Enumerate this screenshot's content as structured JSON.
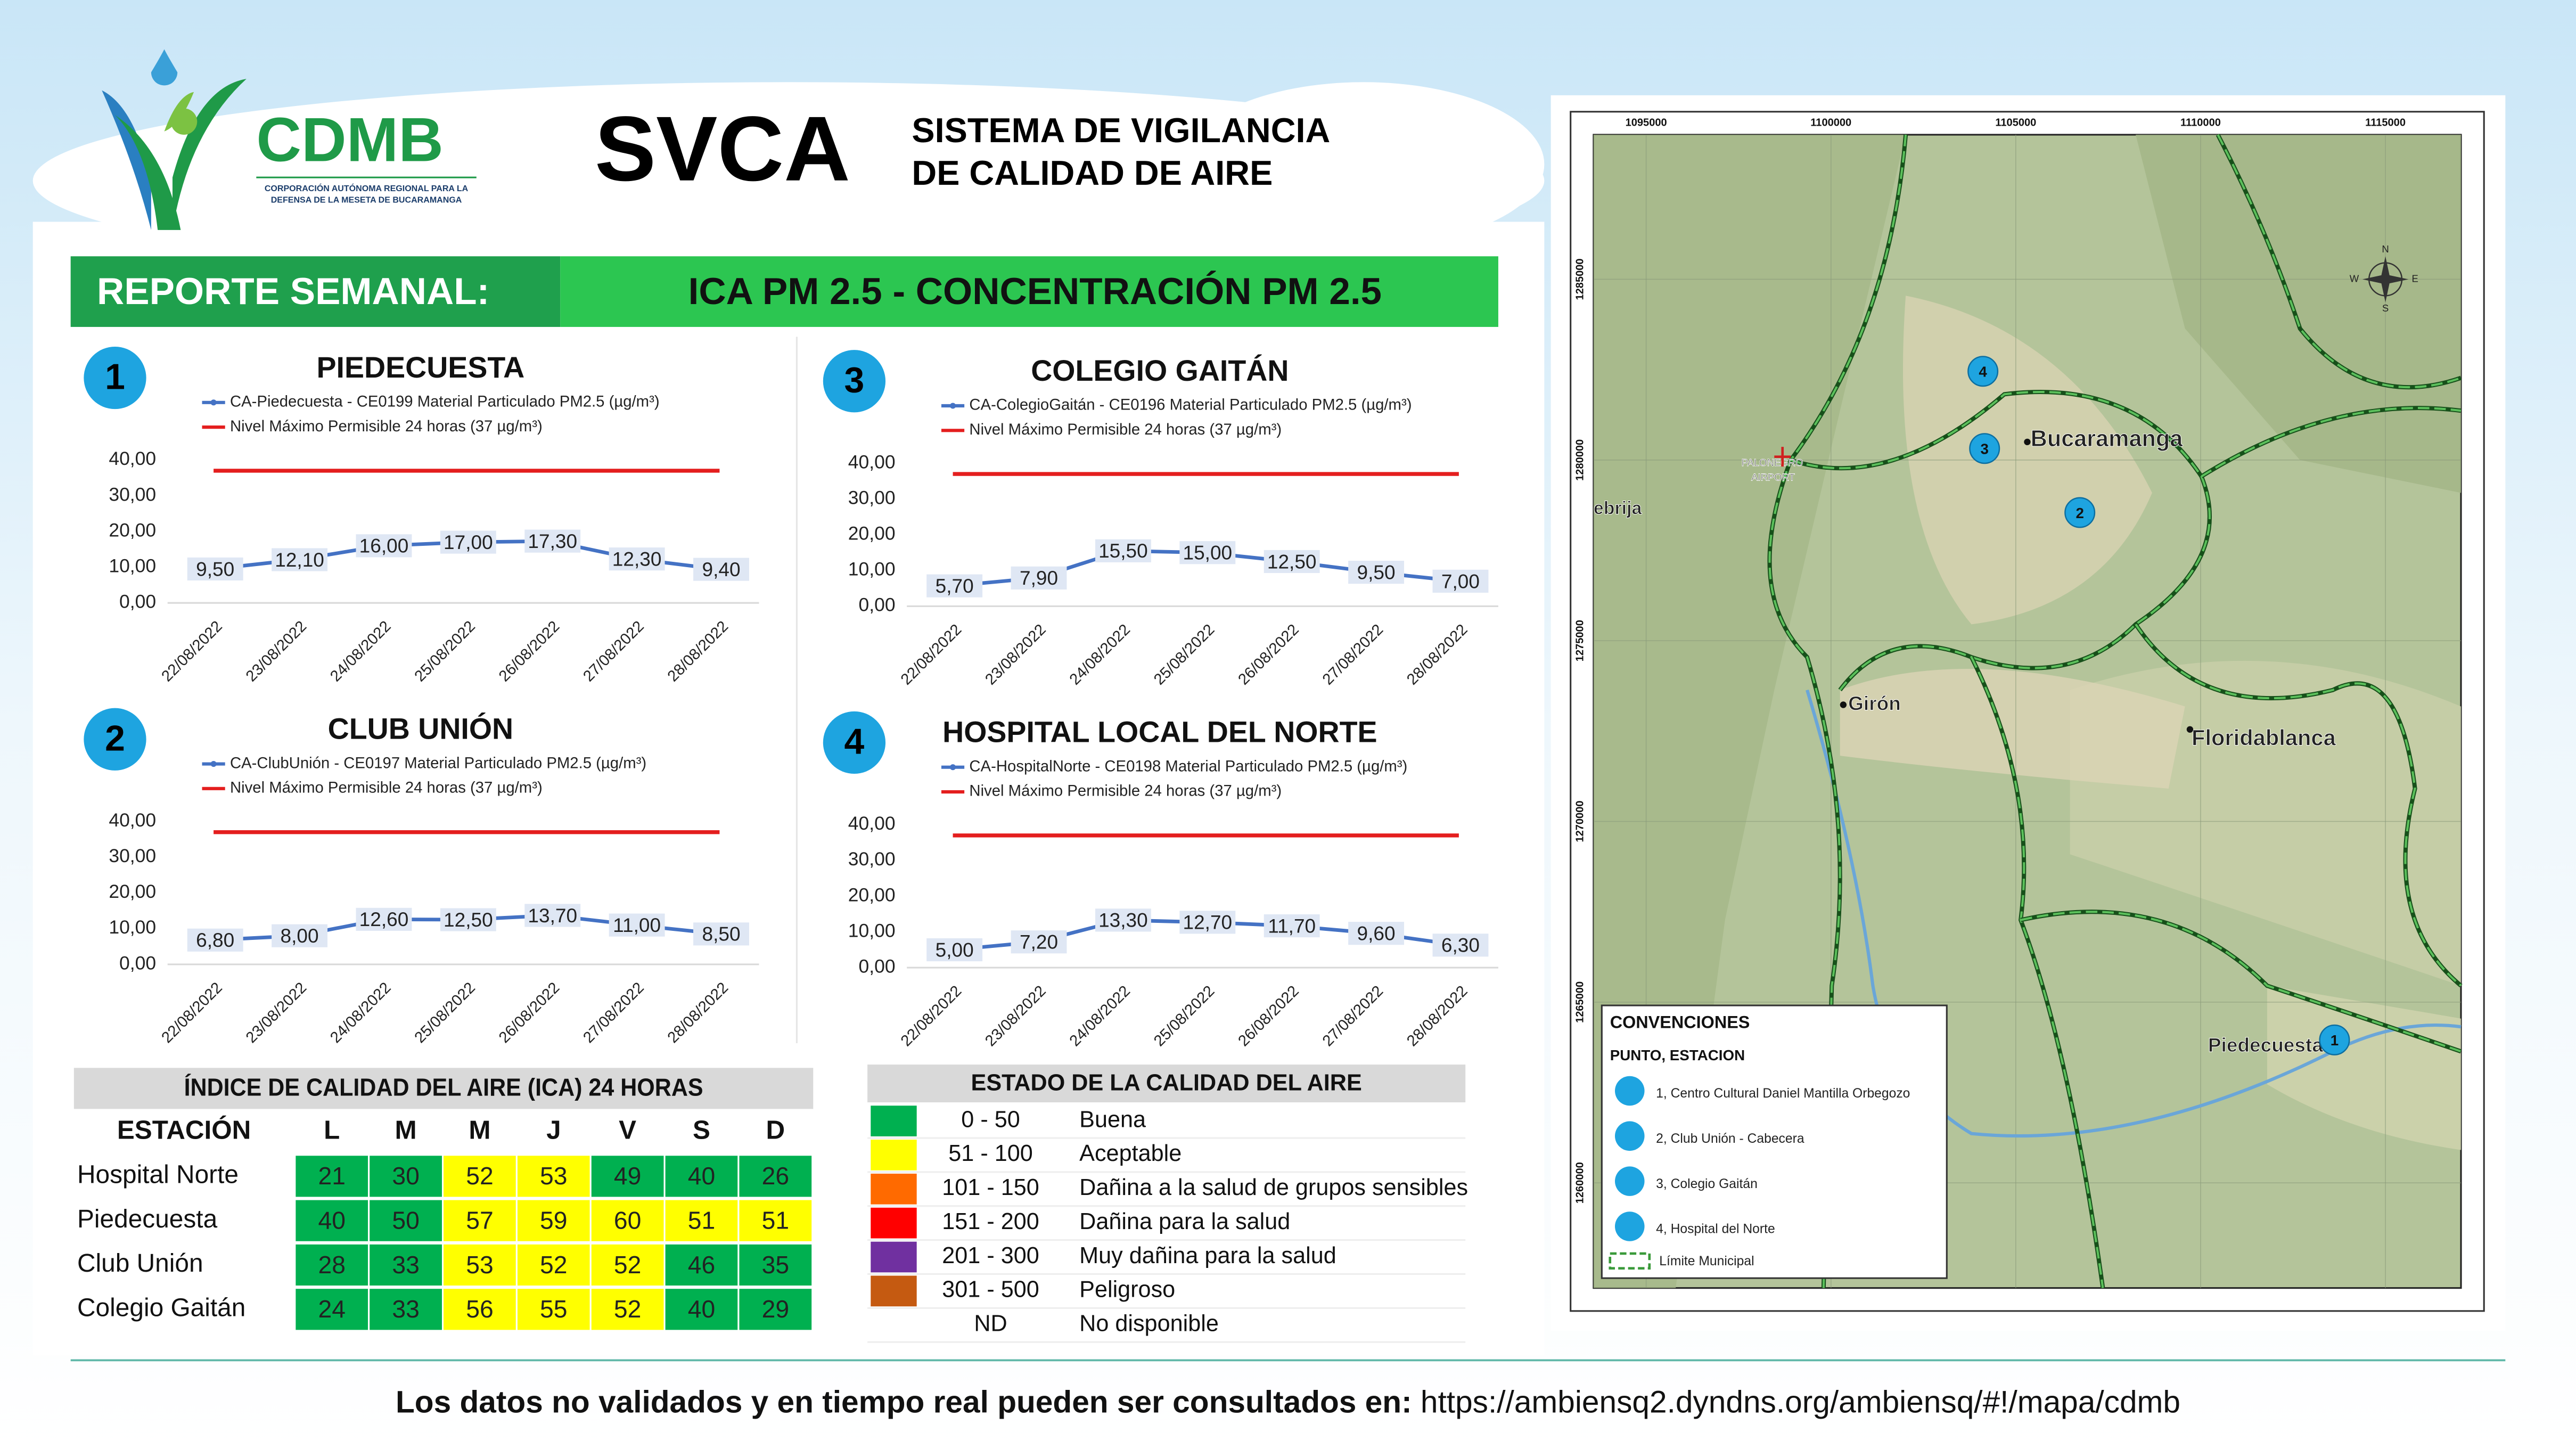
{
  "header": {
    "org": "CDMB",
    "org_subtitle": [
      "CORPORACIÓN AUTÓNOMA REGIONAL PARA LA",
      "DEFENSA DE LA MESETA DE BUCARAMANGA"
    ],
    "title": "SVCA",
    "subtitle": [
      "SISTEMA DE VIGILANCIA",
      "DE CALIDAD DE AIRE"
    ]
  },
  "banner": {
    "label": "REPORTE SEMANAL:",
    "title": "ICA PM 2.5 - CONCENTRACIÓN PM 2.5"
  },
  "chart_data": [
    {
      "type": "line",
      "number": "1",
      "title": "PIEDECUESTA",
      "categories": [
        "22/08/2022",
        "23/08/2022",
        "24/08/2022",
        "25/08/2022",
        "26/08/2022",
        "27/08/2022",
        "28/08/2022"
      ],
      "series": [
        {
          "name": "CA-Piedecuesta - CE0199 Material Particulado PM2.5 (µg/m³)",
          "color": "#4472c4",
          "values": [
            9.5,
            12.1,
            16,
            17,
            17.3,
            12.3,
            9.4
          ],
          "value_labels": [
            "9,50",
            "12,10",
            "16,00",
            "17,00",
            "17,30",
            "12,30",
            "9,40"
          ]
        },
        {
          "name": "Nivel Máximo Permisible 24 horas (37 µg/m³)",
          "color": "#e41e1e",
          "values": [
            37,
            37,
            37,
            37,
            37,
            37,
            37
          ]
        }
      ],
      "ylim": [
        0,
        40
      ],
      "yticks": [
        {
          "value": 0,
          "label": "0,00"
        },
        {
          "value": 10,
          "label": "10,00"
        },
        {
          "value": 20,
          "label": "20,00"
        },
        {
          "value": 30,
          "label": "30,00"
        },
        {
          "value": 40,
          "label": "40,00"
        }
      ]
    },
    {
      "type": "line",
      "number": "2",
      "title": "CLUB UNIÓN",
      "categories": [
        "22/08/2022",
        "23/08/2022",
        "24/08/2022",
        "25/08/2022",
        "26/08/2022",
        "27/08/2022",
        "28/08/2022"
      ],
      "series": [
        {
          "name": "CA-ClubUnión - CE0197 Material Particulado PM2.5 (µg/m³)",
          "color": "#4472c4",
          "values": [
            6.8,
            8,
            12.6,
            12.5,
            13.7,
            11,
            8.5
          ],
          "value_labels": [
            "6,80",
            "8,00",
            "12,60",
            "12,50",
            "13,70",
            "11,00",
            "8,50"
          ]
        },
        {
          "name": "Nivel Máximo Permisible 24 horas (37 µg/m³)",
          "color": "#e41e1e",
          "values": [
            37,
            37,
            37,
            37,
            37,
            37,
            37
          ]
        }
      ],
      "ylim": [
        0,
        40
      ],
      "yticks": [
        {
          "value": 0,
          "label": "0,00"
        },
        {
          "value": 10,
          "label": "10,00"
        },
        {
          "value": 20,
          "label": "20,00"
        },
        {
          "value": 30,
          "label": "30,00"
        },
        {
          "value": 40,
          "label": "40,00"
        }
      ]
    },
    {
      "type": "line",
      "number": "3",
      "title": "COLEGIO GAITÁN",
      "categories": [
        "22/08/2022",
        "23/08/2022",
        "24/08/2022",
        "25/08/2022",
        "26/08/2022",
        "27/08/2022",
        "28/08/2022"
      ],
      "series": [
        {
          "name": "CA-ColegioGaitán - CE0196 Material Particulado PM2.5 (µg/m³)",
          "color": "#4472c4",
          "values": [
            5.7,
            7.9,
            15.5,
            15,
            12.5,
            9.5,
            7
          ],
          "value_labels": [
            "5,70",
            "7,90",
            "15,50",
            "15,00",
            "12,50",
            "9,50",
            "7,00"
          ]
        },
        {
          "name": "Nivel Máximo Permisible 24 horas (37 µg/m³)",
          "color": "#e41e1e",
          "values": [
            37,
            37,
            37,
            37,
            37,
            37,
            37
          ]
        }
      ],
      "ylim": [
        0,
        40
      ],
      "yticks": [
        {
          "value": 0,
          "label": "0,00"
        },
        {
          "value": 10,
          "label": "10,00"
        },
        {
          "value": 20,
          "label": "20,00"
        },
        {
          "value": 30,
          "label": "30,00"
        },
        {
          "value": 40,
          "label": "40,00"
        }
      ]
    },
    {
      "type": "line",
      "number": "4",
      "title": "HOSPITAL LOCAL DEL NORTE",
      "categories": [
        "22/08/2022",
        "23/08/2022",
        "24/08/2022",
        "25/08/2022",
        "26/08/2022",
        "27/08/2022",
        "28/08/2022"
      ],
      "series": [
        {
          "name": "CA-HospitalNorte - CE0198 Material Particulado PM2.5 (µg/m³)",
          "color": "#4472c4",
          "values": [
            5,
            7.2,
            13.3,
            12.7,
            11.7,
            9.6,
            6.3
          ],
          "value_labels": [
            "5,00",
            "7,20",
            "13,30",
            "12,70",
            "11,70",
            "9,60",
            "6,30"
          ]
        },
        {
          "name": "Nivel Máximo Permisible 24 horas (37 µg/m³)",
          "color": "#e41e1e",
          "values": [
            37,
            37,
            37,
            37,
            37,
            37,
            37
          ]
        }
      ],
      "ylim": [
        0,
        40
      ],
      "yticks": [
        {
          "value": 0,
          "label": "0,00"
        },
        {
          "value": 10,
          "label": "10,00"
        },
        {
          "value": 20,
          "label": "20,00"
        },
        {
          "value": 30,
          "label": "30,00"
        },
        {
          "value": 40,
          "label": "40,00"
        }
      ]
    }
  ],
  "ica_table": {
    "title": "ÍNDICE DE CALIDAD DEL AIRE (ICA) 24 HORAS",
    "header": [
      "ESTACIÓN",
      "L",
      "M",
      "M",
      "J",
      "V",
      "S",
      "D"
    ],
    "rows": [
      [
        "Hospital Norte",
        21,
        30,
        52,
        53,
        49,
        40,
        26
      ],
      [
        "Piedecuesta",
        40,
        50,
        57,
        59,
        60,
        51,
        51
      ],
      [
        "Club Unión",
        28,
        33,
        53,
        52,
        52,
        46,
        35
      ],
      [
        "Colegio Gaitán",
        24,
        33,
        56,
        55,
        52,
        40,
        29
      ]
    ]
  },
  "quality_legend": {
    "title": "ESTADO DE LA CALIDAD DEL AIRE",
    "rows": [
      {
        "range": "0 - 50",
        "label": "Buena",
        "color": "#00b050"
      },
      {
        "range": "51 - 100",
        "label": "Aceptable",
        "color": "#ffff00"
      },
      {
        "range": "101 - 150",
        "label": "Dañina a la salud de grupos sensibles",
        "color": "#ff6a00"
      },
      {
        "range": "151 - 200",
        "label": "Dañina para la salud",
        "color": "#ff0000"
      },
      {
        "range": "201 - 300",
        "label": "Muy dañina para la salud",
        "color": "#7030a0"
      },
      {
        "range": "301 - 500",
        "label": "Peligroso",
        "color": "#c55a11"
      },
      {
        "range": "ND",
        "label": "No disponible"
      }
    ]
  },
  "map": {
    "xticks": [
      1095000,
      1100000,
      1105000,
      1110000,
      1115000
    ],
    "yticks": [
      1285000,
      1280000,
      1275000,
      1270000,
      1265000,
      1260000
    ],
    "places": [
      "Bucaramanga",
      "Girón",
      "Floridablanca",
      "Piedecuesta",
      "ebrija",
      "PALONEGRO",
      "AIRPORT"
    ],
    "stations": [
      {
        "label": "1"
      },
      {
        "label": "2"
      },
      {
        "label": "3"
      },
      {
        "label": "4"
      }
    ],
    "compass": [
      "N",
      "S",
      "E",
      "W"
    ],
    "legend": {
      "title": "CONVENCIONES",
      "subtitle": "PUNTO, ESTACION",
      "items": [
        "1, Centro Cultural Daniel Mantilla Orbegozo",
        "2, Club Unión - Cabecera",
        "3, Colegio Gaitán",
        "4, Hospital del Norte"
      ],
      "boundary": "Límite Municipal"
    }
  },
  "footer": {
    "text": "Los datos no validados y en tiempo real pueden ser consultados en:",
    "url": "https://ambiensq2.dyndns.org/ambiensq/#!/mapa/cdmb"
  }
}
